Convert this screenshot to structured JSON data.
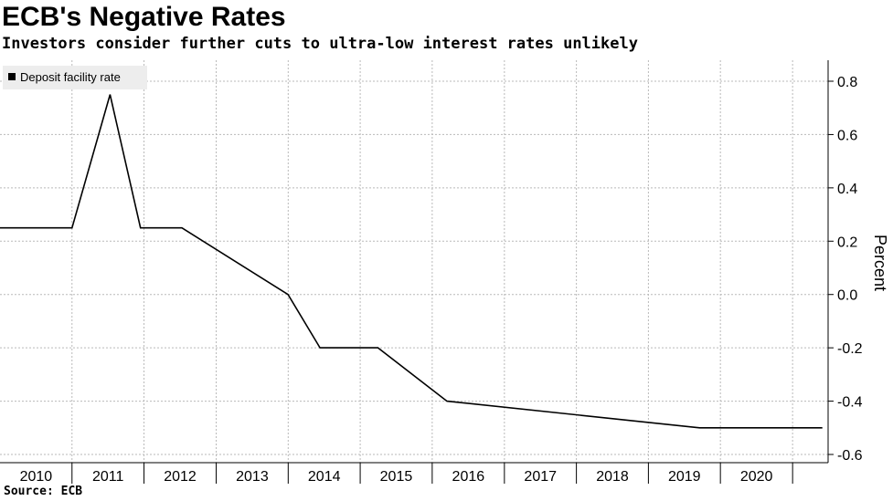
{
  "header": {
    "title": "ECB's Negative Rates",
    "subtitle": "Investors consider further cuts to ultra-low interest rates unlikely"
  },
  "footer": {
    "source": "Source: ECB"
  },
  "colors": {
    "line": "#000000",
    "grid": "#b9b9b9",
    "legend_bg": "#ededed"
  },
  "chart_data": {
    "type": "line",
    "title": "ECB's Negative Rates",
    "subtitle": "Investors consider further cuts to ultra-low interest rates unlikely",
    "xlabel": "",
    "ylabel": "Percent",
    "y_axis_side": "right",
    "ylim": [
      -0.6,
      0.85
    ],
    "yticks": [
      0.8,
      0.6,
      0.4,
      0.2,
      0.0,
      -0.2,
      -0.4,
      -0.6
    ],
    "ytick_labels": [
      "0.8",
      "0.6",
      "0.4",
      "0.2",
      "0.0",
      "-0.2",
      "-0.4",
      "-0.6"
    ],
    "xlim": [
      "2010-01-01",
      "2021-06-30"
    ],
    "x_tick_labels": [
      "2010",
      "2011",
      "2012",
      "2013",
      "2014",
      "2015",
      "2016",
      "2017",
      "2018",
      "2019",
      "2020"
    ],
    "grid": true,
    "legend_placement": "top-left",
    "series": [
      {
        "name": "Deposit facility rate",
        "color": "#000000",
        "x": [
          "2010-01-01",
          "2011-01-01",
          "2011-07-13",
          "2011-12-14",
          "2012-07-11",
          "2013-12-31",
          "2014-06-11",
          "2015-04-01",
          "2016-03-16",
          "2019-09-18",
          "2021-06-01"
        ],
        "y": [
          0.25,
          0.25,
          0.75,
          0.25,
          0.25,
          0.0,
          -0.2,
          -0.2,
          -0.4,
          -0.5,
          -0.5
        ]
      }
    ]
  },
  "legend": {
    "label": "Deposit facility rate"
  }
}
